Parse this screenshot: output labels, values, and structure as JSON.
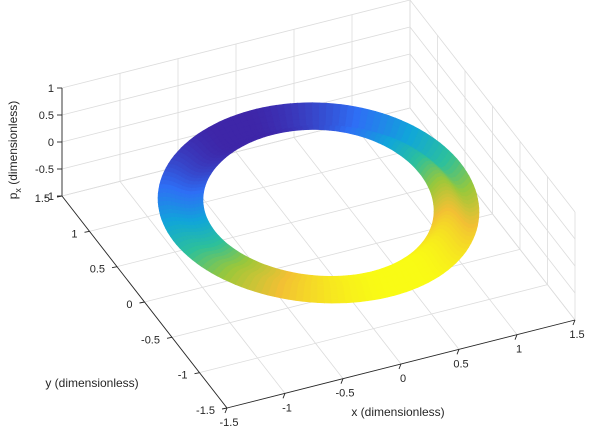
{
  "chart_data": {
    "type": "surface",
    "title": "",
    "xlabel": "x (dimensionless)",
    "ylabel": "y (dimensionless)",
    "zlabel_main": "p",
    "zlabel_sub": "x",
    "zlabel_rest": " (dimensionless)",
    "xlim": [
      -1.5,
      1.5
    ],
    "ylim": [
      -1.5,
      1.5
    ],
    "zlim": [
      -1,
      1
    ],
    "x_ticks": [
      -1.5,
      -1,
      -0.5,
      0,
      0.5,
      1,
      1.5
    ],
    "y_ticks": [
      -1.5,
      -1,
      -0.5,
      0,
      0.5,
      1,
      1.5
    ],
    "z_ticks": [
      -1,
      -0.5,
      0,
      0.5,
      1
    ],
    "x_tick_labels": [
      "-1.5",
      "-1",
      "-0.5",
      "0",
      "0.5",
      "1",
      "1.5"
    ],
    "y_tick_labels": [
      "-1.5",
      "-1",
      "-0.5",
      "0",
      "0.5",
      "1",
      "1.5"
    ],
    "z_tick_labels": [
      "-1",
      "-0.5",
      "0",
      "0.5",
      "1"
    ],
    "grid": true,
    "colormap": "parula",
    "colormap_stops": [
      "#3e26a8",
      "#2e6ff5",
      "#10a6d9",
      "#2dc09b",
      "#9bc83a",
      "#f2c034",
      "#f9fb15"
    ],
    "surface": {
      "description_free": true,
      "radius_range": [
        0.9,
        1.25
      ],
      "z_range": [
        -1,
        1
      ],
      "color_variable": "p_x"
    }
  }
}
